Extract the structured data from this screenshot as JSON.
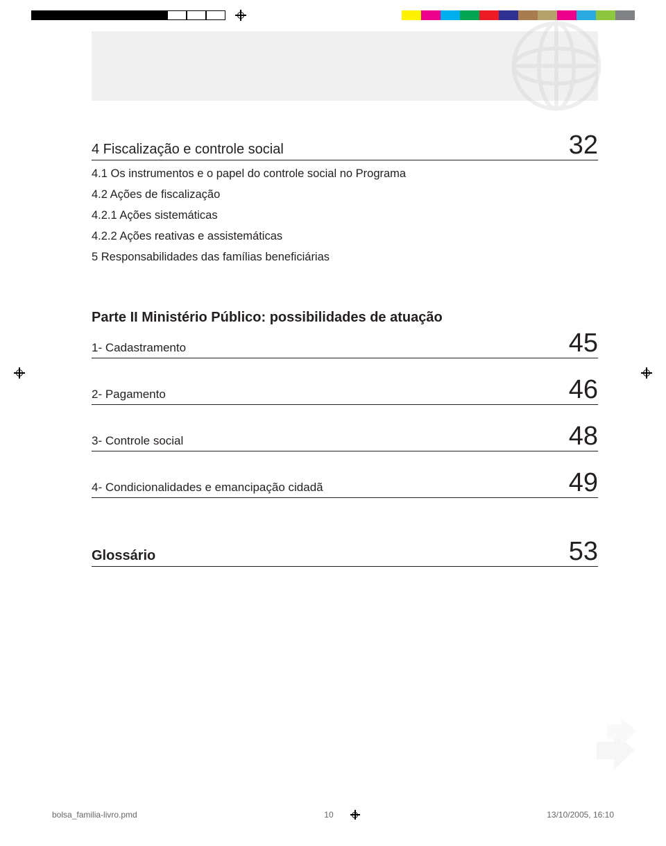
{
  "registration": {
    "bw_swatches": [
      true,
      true,
      true,
      true,
      true,
      true,
      true,
      false,
      false,
      false
    ],
    "color_swatches": [
      "#fff200",
      "#ec008c",
      "#00aeef",
      "#00a651",
      "#ed1c24",
      "#2e3192",
      "#a97c50",
      "#b5a26a",
      "#ec008c",
      "#29abe2",
      "#8dc63f",
      "#808285"
    ]
  },
  "toc": {
    "section4": {
      "title": "4 Fiscalização e controle social",
      "page": "32",
      "items": [
        "4.1 Os instrumentos e o papel do controle social no Programa",
        "4.2 Ações de fiscalização",
        "4.2.1 Ações sistemáticas",
        "4.2.2 Ações reativas e assistemáticas",
        "5 Responsabilidades das famílias beneficiárias"
      ]
    },
    "part2": {
      "heading": "Parte II  Ministério Público: possibilidades de atuação",
      "rows": [
        {
          "title": "1- Cadastramento",
          "page": "45"
        },
        {
          "title": "2- Pagamento",
          "page": "46"
        },
        {
          "title": "3- Controle social",
          "page": "48"
        },
        {
          "title": "4- Condicionalidades e emancipação cidadã",
          "page": "49"
        }
      ]
    },
    "glossary": {
      "title": "Glossário",
      "page": "53"
    }
  },
  "footer": {
    "file": "bolsa_familia-livro.pmd",
    "page": "10",
    "datetime": "13/10/2005, 16:10"
  },
  "colors": {
    "text": "#231f20",
    "band": "#f0f0f0",
    "deco": "#d9d9d9"
  }
}
